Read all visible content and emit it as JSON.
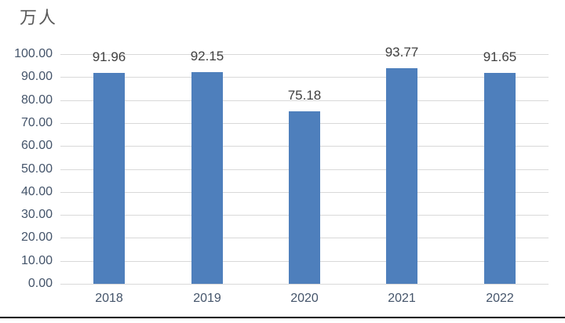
{
  "title": "万人",
  "chart_data": {
    "type": "bar",
    "title": "万人",
    "ylabel": "万人",
    "xlabel": "",
    "categories": [
      "2018",
      "2019",
      "2020",
      "2021",
      "2022"
    ],
    "values": [
      91.96,
      92.15,
      75.18,
      93.77,
      91.65
    ],
    "data_labels": [
      "91.96",
      "92.15",
      "75.18",
      "93.77",
      "91.65"
    ],
    "ylim": [
      0,
      100
    ],
    "ytick_step": 10,
    "ytick_labels": [
      "0.00",
      "10.00",
      "20.00",
      "30.00",
      "40.00",
      "50.00",
      "60.00",
      "70.00",
      "80.00",
      "90.00",
      "100.00"
    ],
    "grid": true,
    "legend": false,
    "colors": {
      "bar": "#4E7FBC",
      "gridline": "#D9D9D9",
      "tick_label": "#44546A",
      "data_label": "#404040",
      "title": "#595959",
      "bottom_rule": "#000000",
      "background": "#FFFFFF"
    }
  }
}
